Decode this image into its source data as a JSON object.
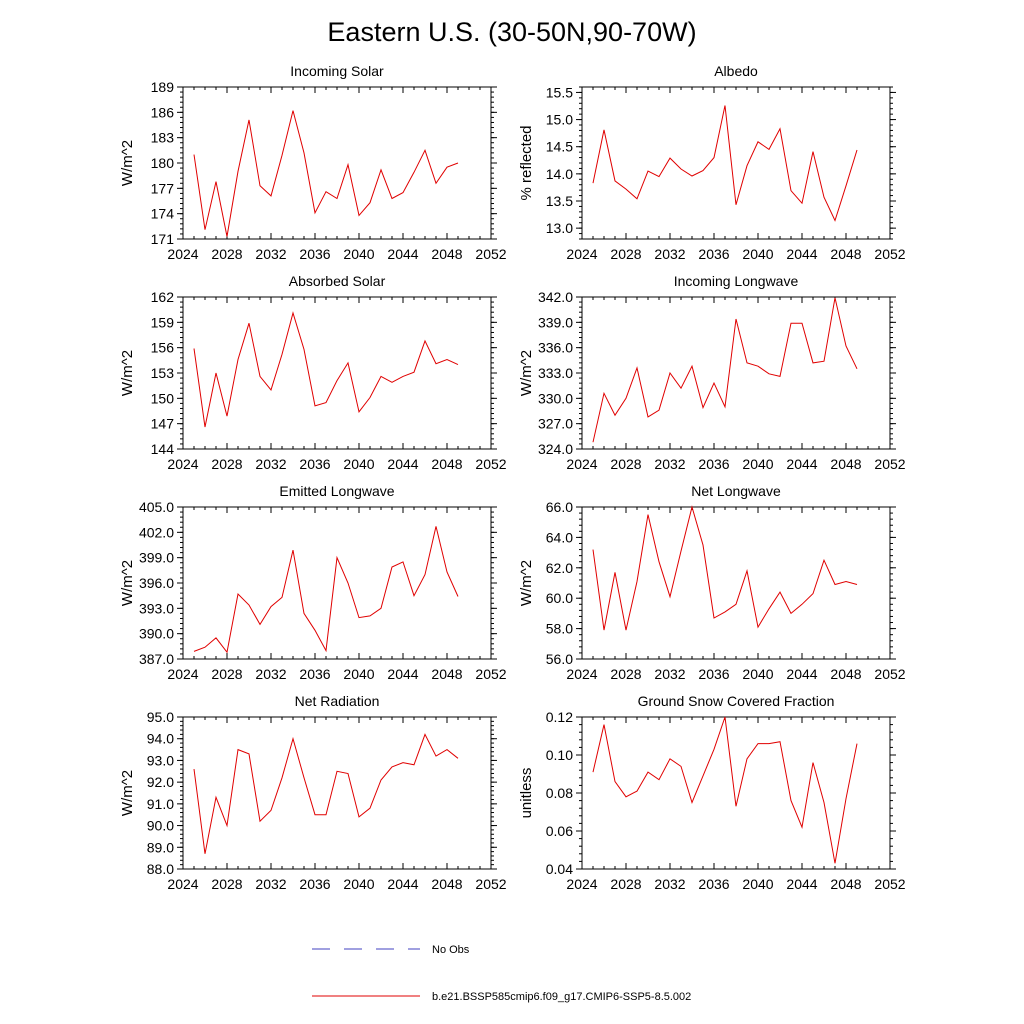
{
  "figure": {
    "title": "Eastern U.S. (30-50N,90-70W)"
  },
  "legend": {
    "entries": [
      {
        "label": "No Obs",
        "color": "#4040c0",
        "style": "dashed"
      },
      {
        "label": "b.e21.BSSP585cmip6.f09_g17.CMIP6-SSP5-8.5.002",
        "color": "#e00000",
        "style": "solid"
      }
    ]
  },
  "chart_data": [
    {
      "type": "line",
      "title": "Incoming Solar",
      "ylabel": "W/m^2",
      "xlim": [
        2024,
        2052
      ],
      "xticks": [
        "2024",
        "2028",
        "2032",
        "2036",
        "2040",
        "2044",
        "2048",
        "2052"
      ],
      "ylim": [
        171,
        189
      ],
      "yticks": [
        "171",
        "174",
        "177",
        "180",
        "183",
        "186",
        "189"
      ],
      "x": [
        2025,
        2026,
        2027,
        2028,
        2029,
        2030,
        2031,
        2032,
        2033,
        2034,
        2035,
        2036,
        2037,
        2038,
        2039,
        2040,
        2041,
        2042,
        2043,
        2044,
        2045,
        2046,
        2047,
        2048,
        2049
      ],
      "series": [
        {
          "color": "#e00000",
          "values": [
            181.0,
            172.1,
            177.8,
            171.3,
            179.0,
            185.1,
            177.3,
            176.1,
            180.9,
            186.2,
            181.2,
            174.1,
            176.6,
            175.8,
            179.8,
            173.8,
            175.3,
            179.2,
            175.8,
            176.5,
            178.9,
            181.5,
            177.6,
            179.5,
            180.0
          ]
        }
      ]
    },
    {
      "type": "line",
      "title": "Albedo",
      "ylabel": "% reflected",
      "xlim": [
        2024,
        2052
      ],
      "xticks": [
        "2024",
        "2028",
        "2032",
        "2036",
        "2040",
        "2044",
        "2048",
        "2052"
      ],
      "ylim": [
        12.8,
        15.6
      ],
      "yticks": [
        "13.0",
        "13.5",
        "14.0",
        "14.5",
        "15.0",
        "15.5"
      ],
      "x": [
        2025,
        2026,
        2027,
        2028,
        2029,
        2030,
        2031,
        2032,
        2033,
        2034,
        2035,
        2036,
        2037,
        2038,
        2039,
        2040,
        2041,
        2042,
        2043,
        2044,
        2045,
        2046,
        2047,
        2048,
        2049
      ],
      "series": [
        {
          "color": "#e00000",
          "values": [
            13.83,
            14.81,
            13.87,
            13.72,
            13.54,
            14.05,
            13.95,
            14.29,
            14.09,
            13.96,
            14.06,
            14.3,
            15.26,
            13.43,
            14.15,
            14.59,
            14.45,
            14.83,
            13.69,
            13.46,
            14.41,
            13.57,
            13.14,
            13.78,
            14.44
          ]
        }
      ]
    },
    {
      "type": "line",
      "title": "Absorbed Solar",
      "ylabel": "W/m^2",
      "xlim": [
        2024,
        2052
      ],
      "xticks": [
        "2024",
        "2028",
        "2032",
        "2036",
        "2040",
        "2044",
        "2048",
        "2052"
      ],
      "ylim": [
        144,
        162
      ],
      "yticks": [
        "144",
        "147",
        "150",
        "153",
        "156",
        "159",
        "162"
      ],
      "x": [
        2025,
        2026,
        2027,
        2028,
        2029,
        2030,
        2031,
        2032,
        2033,
        2034,
        2035,
        2036,
        2037,
        2038,
        2039,
        2040,
        2041,
        2042,
        2043,
        2044,
        2045,
        2046,
        2047,
        2048,
        2049
      ],
      "series": [
        {
          "color": "#e00000",
          "values": [
            155.9,
            146.6,
            153.0,
            147.9,
            154.6,
            158.9,
            152.6,
            151.0,
            155.2,
            160.1,
            155.8,
            149.1,
            149.5,
            152.1,
            154.2,
            148.4,
            150.1,
            152.6,
            151.9,
            152.6,
            153.1,
            156.8,
            154.1,
            154.6,
            154.0
          ]
        }
      ]
    },
    {
      "type": "line",
      "title": "Incoming Longwave",
      "ylabel": "W/m^2",
      "xlim": [
        2024,
        2052
      ],
      "xticks": [
        "2024",
        "2028",
        "2032",
        "2036",
        "2040",
        "2044",
        "2048",
        "2052"
      ],
      "ylim": [
        324,
        342
      ],
      "yticks": [
        "324.0",
        "327.0",
        "330.0",
        "333.0",
        "336.0",
        "339.0",
        "342.0"
      ],
      "x": [
        2025,
        2026,
        2027,
        2028,
        2029,
        2030,
        2031,
        2032,
        2033,
        2034,
        2035,
        2036,
        2037,
        2038,
        2039,
        2040,
        2041,
        2042,
        2043,
        2044,
        2045,
        2046,
        2047,
        2048,
        2049
      ],
      "series": [
        {
          "color": "#e00000",
          "values": [
            324.8,
            330.6,
            328.0,
            330.0,
            333.6,
            327.8,
            328.6,
            333.0,
            331.2,
            333.8,
            328.9,
            331.8,
            329.0,
            339.4,
            334.2,
            333.8,
            332.9,
            332.6,
            338.9,
            338.9,
            334.2,
            334.4,
            341.9,
            336.2,
            333.5
          ]
        }
      ]
    },
    {
      "type": "line",
      "title": "Emitted Longwave",
      "ylabel": "W/m^2",
      "xlim": [
        2024,
        2052
      ],
      "xticks": [
        "2024",
        "2028",
        "2032",
        "2036",
        "2040",
        "2044",
        "2048",
        "2052"
      ],
      "ylim": [
        387,
        405
      ],
      "yticks": [
        "387.0",
        "390.0",
        "393.0",
        "396.0",
        "399.0",
        "402.0",
        "405.0"
      ],
      "x": [
        2025,
        2026,
        2027,
        2028,
        2029,
        2030,
        2031,
        2032,
        2033,
        2034,
        2035,
        2036,
        2037,
        2038,
        2039,
        2040,
        2041,
        2042,
        2043,
        2044,
        2045,
        2046,
        2047,
        2048,
        2049
      ],
      "series": [
        {
          "color": "#e00000",
          "values": [
            387.9,
            388.4,
            389.5,
            387.8,
            394.7,
            393.4,
            391.1,
            393.2,
            394.3,
            399.9,
            392.4,
            390.4,
            388.0,
            399.0,
            396.0,
            391.9,
            392.1,
            393.0,
            397.9,
            398.5,
            394.5,
            397.0,
            402.7,
            397.3,
            394.4
          ]
        }
      ]
    },
    {
      "type": "line",
      "title": "Net Longwave",
      "ylabel": "W/m^2",
      "xlim": [
        2024,
        2052
      ],
      "xticks": [
        "2024",
        "2028",
        "2032",
        "2036",
        "2040",
        "2044",
        "2048",
        "2052"
      ],
      "ylim": [
        56,
        66
      ],
      "yticks": [
        "56.0",
        "58.0",
        "60.0",
        "62.0",
        "64.0",
        "66.0"
      ],
      "x": [
        2025,
        2026,
        2027,
        2028,
        2029,
        2030,
        2031,
        2032,
        2033,
        2034,
        2035,
        2036,
        2037,
        2038,
        2039,
        2040,
        2041,
        2042,
        2043,
        2044,
        2045,
        2046,
        2047,
        2048,
        2049
      ],
      "series": [
        {
          "color": "#e00000",
          "values": [
            63.2,
            57.9,
            61.7,
            57.9,
            61.1,
            65.5,
            62.4,
            60.1,
            63.1,
            66.0,
            63.5,
            58.7,
            59.1,
            59.6,
            61.8,
            58.1,
            59.3,
            60.4,
            59.0,
            59.6,
            60.3,
            62.5,
            60.9,
            61.1,
            60.9
          ]
        }
      ]
    },
    {
      "type": "line",
      "title": "Net Radiation",
      "ylabel": "W/m^2",
      "xlim": [
        2024,
        2052
      ],
      "xticks": [
        "2024",
        "2028",
        "2032",
        "2036",
        "2040",
        "2044",
        "2048",
        "2052"
      ],
      "ylim": [
        88,
        95
      ],
      "yticks": [
        "88.0",
        "89.0",
        "90.0",
        "91.0",
        "92.0",
        "93.0",
        "94.0",
        "95.0"
      ],
      "x": [
        2025,
        2026,
        2027,
        2028,
        2029,
        2030,
        2031,
        2032,
        2033,
        2034,
        2035,
        2036,
        2037,
        2038,
        2039,
        2040,
        2041,
        2042,
        2043,
        2044,
        2045,
        2046,
        2047,
        2048,
        2049
      ],
      "series": [
        {
          "color": "#e00000",
          "values": [
            92.6,
            88.7,
            91.3,
            90.0,
            93.5,
            93.3,
            90.2,
            90.7,
            92.2,
            94.0,
            92.2,
            90.5,
            90.5,
            92.5,
            92.4,
            90.4,
            90.8,
            92.1,
            92.7,
            92.9,
            92.8,
            94.2,
            93.2,
            93.5,
            93.1
          ]
        }
      ]
    },
    {
      "type": "line",
      "title": "Ground Snow Covered Fraction",
      "ylabel": "unitless",
      "xlim": [
        2024,
        2052
      ],
      "xticks": [
        "2024",
        "2028",
        "2032",
        "2036",
        "2040",
        "2044",
        "2048",
        "2052"
      ],
      "ylim": [
        0.04,
        0.12
      ],
      "yticks": [
        "0.04",
        "0.06",
        "0.08",
        "0.10",
        "0.12"
      ],
      "x": [
        2025,
        2026,
        2027,
        2028,
        2029,
        2030,
        2031,
        2032,
        2033,
        2034,
        2035,
        2036,
        2037,
        2038,
        2039,
        2040,
        2041,
        2042,
        2043,
        2044,
        2045,
        2046,
        2047,
        2048,
        2049
      ],
      "series": [
        {
          "color": "#e00000",
          "values": [
            0.091,
            0.116,
            0.086,
            0.078,
            0.081,
            0.091,
            0.087,
            0.098,
            0.094,
            0.075,
            0.089,
            0.103,
            0.12,
            0.073,
            0.098,
            0.106,
            0.106,
            0.107,
            0.076,
            0.062,
            0.096,
            0.075,
            0.043,
            0.077,
            0.106
          ]
        }
      ]
    }
  ]
}
